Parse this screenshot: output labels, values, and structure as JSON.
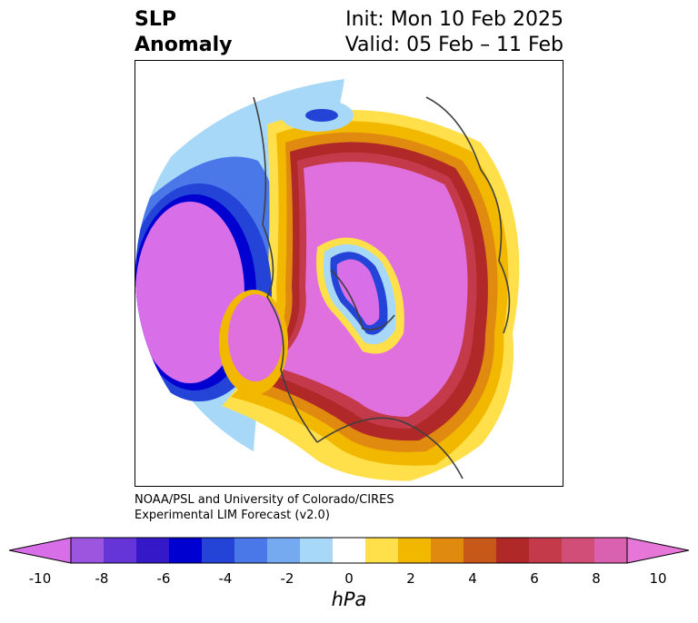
{
  "title": {
    "left_line1": "SLP",
    "left_line2": "Anomaly",
    "right_line1": "Init: Mon 10 Feb 2025",
    "right_line2": "Valid: 05 Feb – 11 Feb"
  },
  "credit": {
    "line1": "NOAA/PSL and University of Colorado/CIRES",
    "line2": "Experimental LIM Forecast (v2.0)"
  },
  "colorbar": {
    "units": "hPa",
    "tick_labels": [
      "-10",
      "-8",
      "-6",
      "-4",
      "-2",
      "0",
      "2",
      "4",
      "6",
      "8",
      "10"
    ],
    "colors": [
      "#d86ee8",
      "#9b55de",
      "#6535d8",
      "#3518c8",
      "#0000d0",
      "#2444d8",
      "#4b78e8",
      "#76aaf0",
      "#a8d8f8",
      "#ffffff",
      "#ffe04a",
      "#f2b800",
      "#e08a10",
      "#c8581a",
      "#b02828",
      "#c43a4a",
      "#d04e78",
      "#da60b0",
      "#e676d8"
    ],
    "extend": "both"
  },
  "map": {
    "projection": "north-polar-stereographic",
    "colors": {
      "strong_neg": "#d86ee8",
      "neg_deep": "#0000d0",
      "neg_mid": "#4b78e8",
      "neg_light": "#a8d8f8",
      "pos_yellow": "#ffe04a",
      "pos_gold": "#f2b800",
      "pos_orange": "#e08a10",
      "pos_red": "#b02828",
      "pos_rose": "#c43a4a",
      "pos_magenta": "#e070dd",
      "coast": "#404040"
    }
  }
}
